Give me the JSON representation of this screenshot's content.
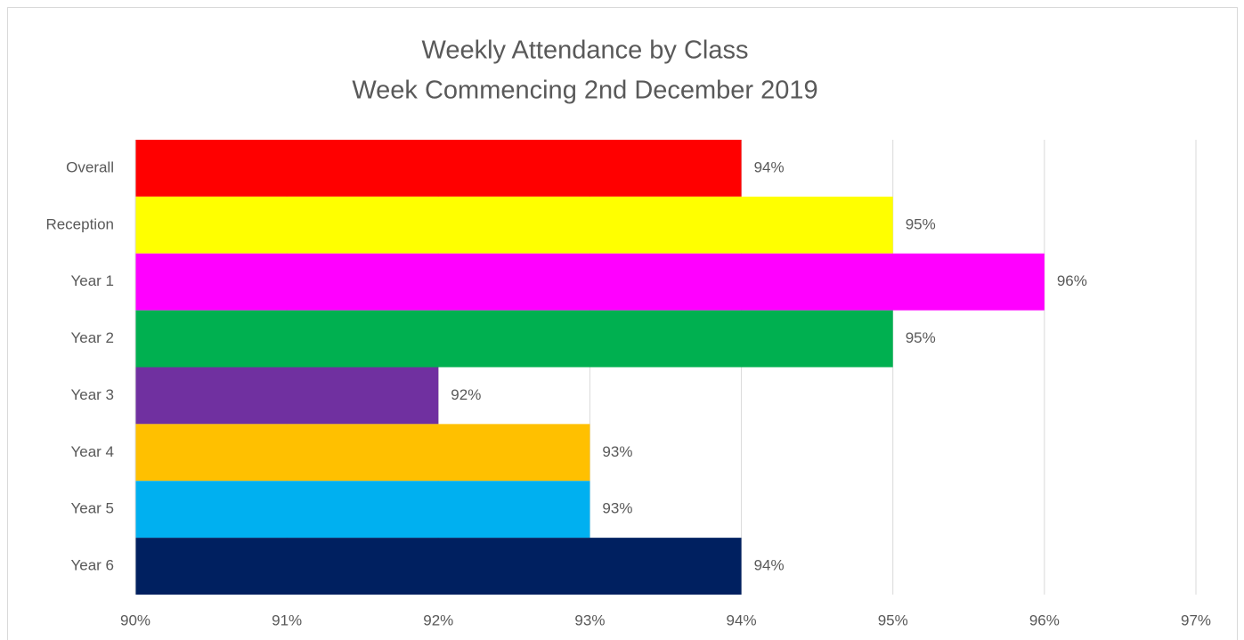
{
  "chart_data": {
    "type": "bar",
    "orientation": "horizontal",
    "title": "Weekly Attendance by Class",
    "subtitle": "Week Commencing 2nd December 2019",
    "categories": [
      "Overall",
      "Reception",
      "Year 1",
      "Year 2",
      "Year 3",
      "Year 4",
      "Year 5",
      "Year 6"
    ],
    "values": [
      94,
      95,
      96,
      95,
      92,
      93,
      93,
      94
    ],
    "value_labels": [
      "94%",
      "95%",
      "96%",
      "95%",
      "92%",
      "93%",
      "93%",
      "94%"
    ],
    "colors": [
      "#ff0000",
      "#ffff00",
      "#ff00ff",
      "#00b050",
      "#7030a0",
      "#ffc000",
      "#00b0f0",
      "#002060"
    ],
    "xlim": [
      90,
      97
    ],
    "xticks": [
      {
        "value": 90,
        "label": "90%"
      },
      {
        "value": 91,
        "label": "91%"
      },
      {
        "value": 92,
        "label": "92%"
      },
      {
        "value": 93,
        "label": "93%"
      },
      {
        "value": 94,
        "label": "94%"
      },
      {
        "value": 95,
        "label": "95%"
      },
      {
        "value": 96,
        "label": "96%"
      },
      {
        "value": 97,
        "label": "97%"
      }
    ],
    "grid": true
  }
}
